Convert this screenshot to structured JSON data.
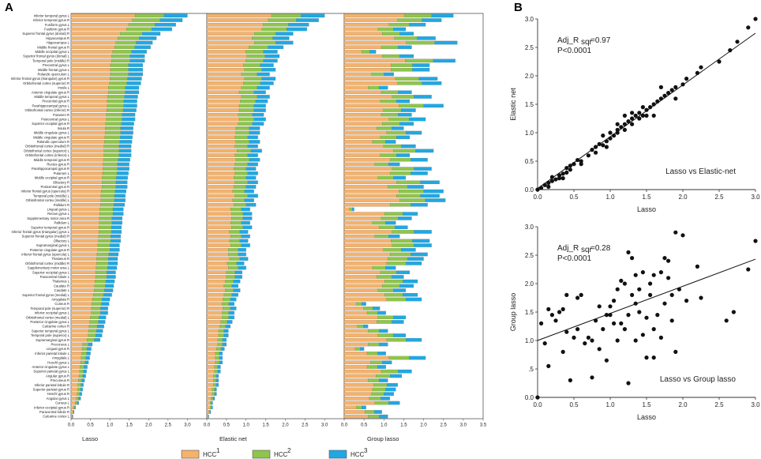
{
  "panel_a_letter": "A",
  "panel_b_letter": "B",
  "colors": {
    "hcc1": "#f5b26b",
    "hcc2": "#8fc54a",
    "hcc3": "#1fa8e4",
    "frame": "#555555"
  },
  "chart_data": [
    {
      "type": "bar",
      "orientation": "horizontal-stacked",
      "title": "",
      "panel_label": "A",
      "regions": [
        "Inferior temporal gyrus L",
        "Inferior temporal gyrus R",
        "Fusiform gyrus L",
        "Fusiform gyrus R",
        "Superior frontal gyrus (dorsal) R",
        "Hippocampus R",
        "Hippocampus L",
        "Middle frontal gyrus R",
        "Middle occipital gyrus L",
        "Superior frontal gyrus (dorsal) L",
        "Temporal pole (middle) R",
        "Precentral gyrus L",
        "Middle frontal gyrus L",
        "Rolandic operculum L",
        "Inferior frontal gyrus (triangular) gyrus R",
        "Orbitofrontal cortex (superior) R",
        "Insula L",
        "Anterior cingulate gyrus R",
        "Middle temporal gyrus L",
        "Precentral gyrus R",
        "Parahippocampal gyrus L",
        "Orbitofrontal cortex (inferior) R",
        "Putamen R",
        "Postcentral gyrus L",
        "Superior occipital gyrus R",
        "Insula R",
        "Middle cingulate gyrus L",
        "Middle cingulate gyrus R",
        "Rolandic operculum R",
        "Orbitofrontal cortex (medial) R",
        "Orbitofrontal cortex (superior) L",
        "Orbitofrontal cortex (inferior) L",
        "Middle temporal gyrus R",
        "Rectus gyrus R",
        "Parahippocampal gyrus R",
        "Putamen L",
        "Middle occipital gyrus R",
        "Olfactory R",
        "Postcentral gyrus R",
        "Inferior frontal gyrus (opercula) R",
        "Temporal pole (middle) L",
        "Orbitofrontal cortex (middle) L",
        "Pallidum R",
        "Lingual gyrus L",
        "Rectus gyrus L",
        "Supplementary motor area R",
        "Pallidum L",
        "Superior temporal gyrus R",
        "Inferior frontal gyrus (triangular) gyrus L",
        "Superior frontal gyrus (medial) R",
        "Olfactory L",
        "Supramarginal gyrus L",
        "Posterior cingulate gyrus R",
        "Inferior frontal gyrus (opercula) L",
        "Thalamus R",
        "Orbitofrontal cortex (middle) R",
        "Supplementary motor area L",
        "Superior occipital gyrus L",
        "Paracentral lobule L",
        "Thalamus L",
        "Caudate R",
        "Caudate L",
        "Superior frontal gyrus (medial) L",
        "Amygdala R",
        "Cuneus R",
        "Temporal pole (superior) R",
        "Inferior occipital gyrus L",
        "Orbitofrontal cortex (medial) L",
        "Posterior cingulate gyrus L",
        "Calcarine cortex R",
        "Superior temporal gyrus L",
        "Temporal pole (superior) L",
        "Supramarginal gyrus R",
        "Precuneus L",
        "Lingual gyrus R",
        "Inferior parietal lobule L",
        "Amygdala L",
        "Heschl gyrus L",
        "Anterior cingulate gyrus L",
        "Superior parietal gyrus L",
        "Angular gyrus R",
        "Precuneus R",
        "Inferior parietal lobule R",
        "Superior parietal gyrus R",
        "Heschl gyrus R",
        "Angular gyrus L",
        "Cuneus L",
        "Inferior occipital gyrus R",
        "Paracentral lobule R",
        "Calcarine cortex L"
      ],
      "legend": [
        "HCC",
        "HCC",
        "HCC"
      ],
      "legend_sup": [
        "1",
        "2",
        "3"
      ],
      "subplots": [
        {
          "xlabel": "Lasso",
          "xlim": [
            0,
            3.5
          ],
          "ticks": [
            "0.0",
            "0.5",
            "1.0",
            "1.5",
            "2.0",
            "2.5",
            "3.0"
          ],
          "series": {
            "HCC1": "~55% of each total",
            "HCC2": "~25% of each total",
            "HCC3": "~20% of each total"
          },
          "totals": [
            3.0,
            2.87,
            2.7,
            2.6,
            2.3,
            2.2,
            2.1,
            2.05,
            1.95,
            1.9,
            1.9,
            1.85,
            1.85,
            1.85,
            1.82,
            1.8,
            1.75,
            1.75,
            1.72,
            1.7,
            1.7,
            1.68,
            1.65,
            1.65,
            1.62,
            1.6,
            1.6,
            1.58,
            1.57,
            1.55,
            1.55,
            1.55,
            1.52,
            1.5,
            1.5,
            1.48,
            1.46,
            1.45,
            1.45,
            1.42,
            1.4,
            1.4,
            1.38,
            1.35,
            1.35,
            1.32,
            1.32,
            1.3,
            1.3,
            1.28,
            1.28,
            1.25,
            1.25,
            1.22,
            1.2,
            1.2,
            1.18,
            1.15,
            1.15,
            1.12,
            1.1,
            1.08,
            1.05,
            1.0,
            0.98,
            0.95,
            0.95,
            0.9,
            0.88,
            0.85,
            0.82,
            0.8,
            0.75,
            0.55,
            0.52,
            0.5,
            0.48,
            0.45,
            0.42,
            0.4,
            0.38,
            0.35,
            0.32,
            0.3,
            0.28,
            0.25,
            0.2,
            0.12,
            0.08,
            0.05
          ]
        },
        {
          "xlabel": "Elastic net",
          "xlim": [
            0,
            3.5
          ],
          "ticks": [
            "0.0",
            "0.5",
            "1.0",
            "1.5",
            "2.0",
            "2.5",
            "3.0"
          ],
          "series": {
            "HCC1": "~55% of each total",
            "HCC2": "~25% of each total",
            "HCC3": "~20% of each total"
          },
          "totals": [
            3.0,
            2.85,
            2.6,
            2.55,
            2.2,
            2.1,
            2.2,
            1.95,
            1.8,
            1.85,
            1.8,
            1.7,
            1.75,
            1.6,
            1.75,
            1.7,
            1.6,
            1.5,
            1.6,
            1.55,
            1.5,
            1.5,
            1.45,
            1.5,
            1.45,
            1.35,
            1.35,
            1.3,
            1.35,
            1.3,
            1.4,
            1.3,
            1.35,
            1.3,
            1.25,
            1.3,
            1.25,
            1.3,
            1.25,
            1.2,
            1.3,
            1.2,
            1.25,
            1.1,
            1.15,
            1.15,
            1.1,
            1.15,
            1.05,
            1.1,
            1.05,
            1.1,
            1.0,
            1.0,
            1.05,
            0.95,
            1.0,
            0.9,
            0.9,
            0.85,
            0.8,
            0.85,
            0.8,
            0.75,
            0.7,
            0.75,
            0.7,
            0.7,
            0.65,
            0.6,
            0.55,
            0.55,
            0.5,
            0.5,
            0.45,
            0.4,
            0.4,
            0.4,
            0.35,
            0.35,
            0.3,
            0.3,
            0.3,
            0.25,
            0.25,
            0.2,
            0.15,
            0.15,
            0.1,
            0.05
          ]
        },
        {
          "xlabel": "Group lasso",
          "xlim": [
            0,
            3.5
          ],
          "ticks": [
            "0.0",
            "0.5",
            "1.0",
            "1.5",
            "2.0",
            "2.5",
            "3.0",
            "3.5"
          ],
          "series": {
            "HCC1": "~55% of each total",
            "HCC2": "~25% of each total",
            "HCC3": "~20% of each total"
          },
          "totals": [
            2.75,
            2.45,
            2.05,
            1.55,
            1.75,
            2.3,
            2.85,
            1.7,
            0.8,
            1.75,
            2.8,
            2.15,
            2.15,
            1.25,
            2.35,
            2.45,
            1.1,
            1.7,
            2.2,
            1.65,
            2.5,
            1.8,
            1.7,
            2.05,
            1.75,
            1.5,
            1.95,
            1.65,
            1.3,
            1.8,
            2.25,
            1.65,
            2.1,
            1.4,
            2.2,
            2.1,
            1.55,
            2.4,
            2.0,
            2.5,
            2.4,
            2.55,
            2.1,
            0.25,
            1.85,
            1.7,
            1.3,
            1.6,
            2.2,
            1.4,
            2.15,
            2.2,
            1.8,
            2.1,
            2.0,
            1.95,
            1.3,
            1.65,
            1.5,
            1.85,
            1.75,
            1.55,
            1.85,
            1.95,
            0.55,
            0.9,
            1.05,
            1.55,
            1.5,
            0.6,
            1.1,
            1.55,
            1.95,
            1.1,
            0.5,
            1.05,
            2.05,
            1.2,
            1.05,
            1.7,
            1.45,
            1.1,
            1.35,
            1.3,
            1.25,
            1.15,
            1.4,
            0.55,
            0.95,
            1.1
          ]
        }
      ]
    },
    {
      "type": "scatter",
      "panel_label": "B",
      "xlabel": "Lasso",
      "ylabel": "Elastic net",
      "xlim": [
        0,
        3.0
      ],
      "ylim": [
        0,
        3.0
      ],
      "xticks": [
        "0.0",
        "0.5",
        "1.0",
        "1.5",
        "2.0",
        "2.5",
        "3.0"
      ],
      "yticks": [
        "0.0",
        "0.5",
        "1.0",
        "1.5",
        "2.0",
        "2.5",
        "3.0"
      ],
      "annotation_main": "Adj_R",
      "annotation_sub": "sqr",
      "annotation_val": " =0.97",
      "p_value": "P<0.0001",
      "legend_text": "Lasso vs Elastic-net",
      "fit_line": [
        [
          0,
          0.02
        ],
        [
          3.0,
          2.75
        ]
      ],
      "points": [
        [
          0.0,
          0.0
        ],
        [
          0.05,
          0.03
        ],
        [
          0.1,
          0.08
        ],
        [
          0.15,
          0.12
        ],
        [
          0.2,
          0.15
        ],
        [
          0.2,
          0.22
        ],
        [
          0.25,
          0.18
        ],
        [
          0.3,
          0.25
        ],
        [
          0.3,
          0.2
        ],
        [
          0.35,
          0.28
        ],
        [
          0.4,
          0.3
        ],
        [
          0.4,
          0.38
        ],
        [
          0.45,
          0.35
        ],
        [
          0.45,
          0.42
        ],
        [
          0.5,
          0.45
        ],
        [
          0.55,
          0.52
        ],
        [
          0.6,
          0.5
        ],
        [
          0.7,
          0.6
        ],
        [
          0.75,
          0.7
        ],
        [
          0.8,
          0.65
        ],
        [
          0.8,
          0.75
        ],
        [
          0.85,
          0.8
        ],
        [
          0.9,
          0.78
        ],
        [
          0.95,
          0.85
        ],
        [
          1.0,
          0.9
        ],
        [
          1.0,
          1.0
        ],
        [
          1.05,
          0.95
        ],
        [
          1.1,
          1.05
        ],
        [
          1.1,
          1.0
        ],
        [
          1.15,
          1.1
        ],
        [
          1.2,
          1.05
        ],
        [
          1.2,
          1.15
        ],
        [
          1.25,
          1.2
        ],
        [
          1.3,
          1.15
        ],
        [
          1.3,
          1.25
        ],
        [
          1.35,
          1.3
        ],
        [
          1.4,
          1.25
        ],
        [
          1.4,
          1.35
        ],
        [
          1.45,
          1.3
        ],
        [
          1.5,
          1.4
        ],
        [
          1.5,
          1.3
        ],
        [
          1.55,
          1.45
        ],
        [
          1.6,
          1.5
        ],
        [
          1.65,
          1.55
        ],
        [
          1.7,
          1.6
        ],
        [
          1.75,
          1.65
        ],
        [
          1.8,
          1.7
        ],
        [
          1.85,
          1.75
        ],
        [
          1.9,
          1.8
        ],
        [
          2.0,
          1.85
        ],
        [
          2.05,
          1.95
        ],
        [
          2.2,
          2.05
        ],
        [
          2.25,
          2.15
        ],
        [
          2.5,
          2.25
        ],
        [
          2.65,
          2.45
        ],
        [
          2.75,
          2.6
        ],
        [
          2.9,
          2.85
        ],
        [
          3.0,
          3.0
        ],
        [
          0.15,
          0.05
        ],
        [
          0.35,
          0.2
        ],
        [
          0.6,
          0.45
        ],
        [
          0.9,
          0.95
        ],
        [
          1.2,
          1.3
        ],
        [
          1.45,
          1.45
        ],
        [
          1.6,
          1.3
        ],
        [
          1.7,
          1.8
        ],
        [
          1.9,
          1.6
        ],
        [
          1.3,
          1.35
        ],
        [
          1.1,
          1.15
        ],
        [
          0.95,
          0.75
        ]
      ]
    },
    {
      "type": "scatter",
      "panel_label": "B",
      "xlabel": "Lasso",
      "ylabel": "Group lasso",
      "xlim": [
        0,
        3.0
      ],
      "ylim": [
        0,
        3.0
      ],
      "xticks": [
        "0.0",
        "0.5",
        "1.0",
        "1.5",
        "2.0",
        "2.5",
        "3.0"
      ],
      "yticks": [
        "0.0",
        ".5",
        "1.0",
        "1.5",
        "2.0",
        "2.5",
        "3.0"
      ],
      "annotation_main": "Adj_R",
      "annotation_sub": "sqr",
      "annotation_val": " =0.28",
      "p_value": "P<0.0001",
      "legend_text": "Lasso vs Group lasso",
      "fit_line": [
        [
          0,
          1.0
        ],
        [
          3.0,
          2.43
        ]
      ],
      "points": [
        [
          0.0,
          0.0
        ],
        [
          0.05,
          1.3
        ],
        [
          0.1,
          0.95
        ],
        [
          0.15,
          0.55
        ],
        [
          0.15,
          1.55
        ],
        [
          0.2,
          1.45
        ],
        [
          0.25,
          1.35
        ],
        [
          0.3,
          1.5
        ],
        [
          0.35,
          0.8
        ],
        [
          0.35,
          1.55
        ],
        [
          0.4,
          1.15
        ],
        [
          0.4,
          1.8
        ],
        [
          0.45,
          0.3
        ],
        [
          0.5,
          1.05
        ],
        [
          0.55,
          1.2
        ],
        [
          0.6,
          1.8
        ],
        [
          0.7,
          1.05
        ],
        [
          0.75,
          0.35
        ],
        [
          0.75,
          1.0
        ],
        [
          0.8,
          1.35
        ],
        [
          0.85,
          0.85
        ],
        [
          0.85,
          1.6
        ],
        [
          0.9,
          1.2
        ],
        [
          0.95,
          1.45
        ],
        [
          0.95,
          0.65
        ],
        [
          1.0,
          1.45
        ],
        [
          1.05,
          1.3
        ],
        [
          1.05,
          1.7
        ],
        [
          1.1,
          1.0
        ],
        [
          1.1,
          1.9
        ],
        [
          1.15,
          2.05
        ],
        [
          1.2,
          1.2
        ],
        [
          1.2,
          2.0
        ],
        [
          1.25,
          0.25
        ],
        [
          1.25,
          2.55
        ],
        [
          1.25,
          1.45
        ],
        [
          1.3,
          2.45
        ],
        [
          1.3,
          1.8
        ],
        [
          1.35,
          1.65
        ],
        [
          1.35,
          2.15
        ],
        [
          1.4,
          1.9
        ],
        [
          1.4,
          1.5
        ],
        [
          1.45,
          2.2
        ],
        [
          1.45,
          1.1
        ],
        [
          1.5,
          0.7
        ],
        [
          1.5,
          1.4
        ],
        [
          1.55,
          1.8
        ],
        [
          1.55,
          2.0
        ],
        [
          1.6,
          1.2
        ],
        [
          1.6,
          2.15
        ],
        [
          1.65,
          1.45
        ],
        [
          1.7,
          1.05
        ],
        [
          1.7,
          2.2
        ],
        [
          1.75,
          2.45
        ],
        [
          1.75,
          1.65
        ],
        [
          1.8,
          2.4
        ],
        [
          1.8,
          2.1
        ],
        [
          1.85,
          1.35
        ],
        [
          1.85,
          1.8
        ],
        [
          1.9,
          0.8
        ],
        [
          1.9,
          2.9
        ],
        [
          1.95,
          1.9
        ],
        [
          2.0,
          2.85
        ],
        [
          2.05,
          1.7
        ],
        [
          2.2,
          2.3
        ],
        [
          2.25,
          1.75
        ],
        [
          2.6,
          1.35
        ],
        [
          2.7,
          1.5
        ],
        [
          2.9,
          2.25
        ],
        [
          3.0,
          2.75
        ],
        [
          1.0,
          1.6
        ],
        [
          1.15,
          1.3
        ],
        [
          0.65,
          0.95
        ],
        [
          1.35,
          1.0
        ],
        [
          1.6,
          0.7
        ],
        [
          0.55,
          1.75
        ]
      ]
    }
  ]
}
